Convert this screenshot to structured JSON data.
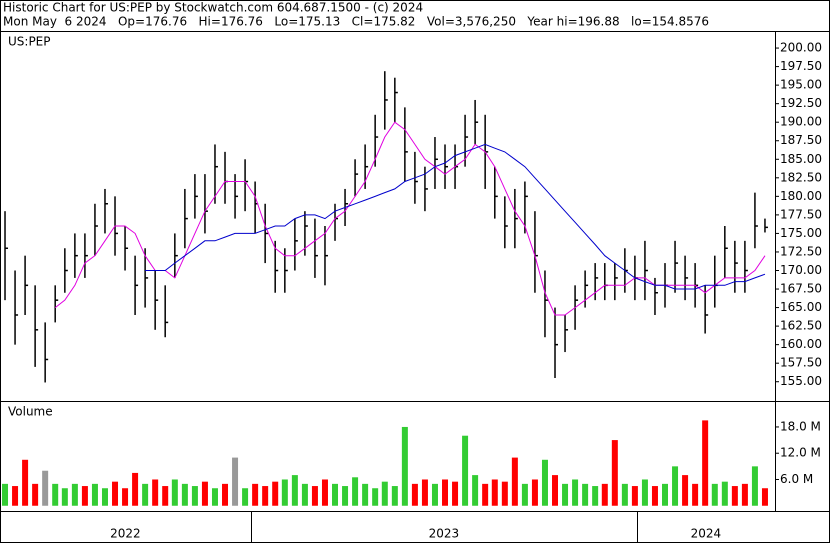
{
  "chart_data": {
    "type": "ohlc",
    "title": "Historic Chart for US:PEP by Stockwatch.com 604.687.1500 - (c) 2024",
    "subtitle": "Mon May  6 2024   Op=176.76   Hi=176.76   Lo=175.13   Cl=175.82   Vol=3,576,250   Year hi=196.88   lo=154.8576",
    "symbol_label": "US:PEP",
    "xlim": [
      2022.35,
      2024.358
    ],
    "xticks": [
      2023,
      2024
    ],
    "year_labels": [
      "2022",
      "2023",
      "2024"
    ],
    "x": [
      2022.363,
      2022.389,
      2022.415,
      2022.441,
      2022.467,
      2022.493,
      2022.518,
      2022.544,
      2022.57,
      2022.596,
      2022.622,
      2022.648,
      2022.674,
      2022.7,
      2022.726,
      2022.752,
      2022.778,
      2022.803,
      2022.829,
      2022.855,
      2022.881,
      2022.907,
      2022.933,
      2022.959,
      2022.985,
      2023.011,
      2023.037,
      2023.063,
      2023.088,
      2023.114,
      2023.14,
      2023.166,
      2023.192,
      2023.218,
      2023.244,
      2023.27,
      2023.296,
      2023.322,
      2023.347,
      2023.373,
      2023.399,
      2023.425,
      2023.451,
      2023.477,
      2023.503,
      2023.529,
      2023.555,
      2023.581,
      2023.607,
      2023.632,
      2023.658,
      2023.684,
      2023.71,
      2023.736,
      2023.762,
      2023.788,
      2023.814,
      2023.84,
      2023.866,
      2023.892,
      2023.917,
      2023.943,
      2023.969,
      2023.995,
      2024.021,
      2024.047,
      2024.073,
      2024.099,
      2024.125,
      2024.151,
      2024.177,
      2024.202,
      2024.228,
      2024.254,
      2024.28,
      2024.306,
      2024.332
    ],
    "high": [
      178,
      170,
      172,
      168,
      163,
      168,
      173,
      175,
      175,
      179,
      181,
      180,
      176,
      172,
      173,
      170,
      168,
      175,
      181,
      183,
      183,
      187,
      186,
      183,
      185,
      182,
      179,
      174,
      173,
      177,
      178,
      177,
      176,
      179,
      181,
      185,
      187,
      191,
      196.88,
      196,
      192,
      186,
      184,
      188,
      187,
      187,
      191,
      193,
      191,
      184,
      180,
      181,
      182,
      178,
      170,
      165,
      164,
      168,
      170,
      171,
      171,
      171,
      173,
      172,
      174,
      169,
      171,
      174,
      172,
      171,
      168,
      172,
      176,
      174,
      174,
      180.5,
      177
    ],
    "low": [
      166,
      160,
      164,
      157,
      154.9,
      163,
      167,
      169,
      169,
      172,
      175,
      172,
      170,
      164,
      165,
      162,
      161,
      169,
      173,
      177,
      175,
      179,
      179,
      177,
      178,
      175,
      171,
      167,
      167,
      170,
      172,
      169,
      168,
      174,
      176,
      180,
      181,
      184,
      189,
      190,
      182,
      179,
      178,
      181,
      181,
      181,
      184,
      187,
      181,
      177,
      173,
      173,
      175,
      167,
      161,
      155.5,
      159,
      162,
      165,
      166,
      166,
      166,
      167,
      166,
      166,
      164,
      165,
      167,
      166,
      165,
      161.5,
      165,
      169,
      167,
      167,
      173,
      175.13
    ],
    "close": [
      173,
      164,
      168,
      162,
      158,
      166,
      170,
      172,
      172,
      176,
      179,
      175,
      173,
      168,
      169,
      166,
      163,
      172,
      177,
      180,
      178,
      184,
      182,
      180,
      182,
      179,
      175,
      170,
      170,
      174,
      176,
      172,
      172,
      177,
      179,
      183,
      184,
      188,
      193,
      194,
      186,
      182,
      181,
      185,
      184,
      184,
      188,
      190,
      186,
      180,
      176,
      177,
      180,
      172,
      166,
      160,
      162,
      166,
      168,
      169,
      168,
      169,
      170,
      169,
      170,
      167,
      168,
      171,
      169,
      168,
      164,
      168,
      173,
      171,
      170,
      176,
      175.82
    ],
    "bar_color": "#000000",
    "series": [
      {
        "color": "#e000e0",
        "values": [
          null,
          null,
          null,
          null,
          null,
          165,
          166,
          168,
          171,
          172,
          174,
          176,
          176,
          175,
          172,
          170,
          170,
          169,
          172,
          175,
          178,
          180,
          182,
          182,
          182,
          180,
          176,
          173,
          172,
          172,
          173,
          174,
          175,
          177,
          178,
          180,
          182,
          185,
          188,
          190,
          189,
          187,
          185,
          184,
          183,
          184,
          185,
          187,
          186,
          184,
          181,
          178,
          176,
          172,
          167,
          164,
          164,
          165,
          166,
          167,
          168,
          168,
          168,
          169,
          169,
          168,
          168,
          168,
          168,
          168,
          167,
          168,
          169,
          169,
          169,
          170,
          172
        ]
      },
      {
        "color": "#0000cc",
        "values": [
          null,
          null,
          null,
          null,
          null,
          null,
          null,
          null,
          null,
          null,
          null,
          null,
          null,
          null,
          170,
          170,
          170,
          171,
          172,
          173,
          174,
          174,
          174.5,
          175,
          175,
          175,
          175.5,
          176,
          176,
          177,
          177.5,
          177.5,
          177,
          178,
          178.5,
          179,
          179.5,
          180,
          180.5,
          181,
          182,
          182.5,
          183,
          184,
          184.5,
          185.5,
          186,
          186.5,
          187,
          186.5,
          186,
          185,
          184,
          182.5,
          181,
          179.5,
          178,
          176.5,
          175,
          173.5,
          172,
          171,
          170,
          169,
          168.5,
          168,
          168,
          167.5,
          167.5,
          167.5,
          168,
          168,
          168,
          168.5,
          168.5,
          169,
          169.5
        ]
      }
    ],
    "ylim": [
      152.4,
      202.3
    ],
    "yticks": [
      {
        "value": 155,
        "label": "155.00"
      },
      {
        "value": 157.5,
        "label": "157.50"
      },
      {
        "value": 160,
        "label": "160.00"
      },
      {
        "value": 162.5,
        "label": "162.50"
      },
      {
        "value": 165,
        "label": "165.00"
      },
      {
        "value": 167.5,
        "label": "167.50"
      },
      {
        "value": 170,
        "label": "170.00"
      },
      {
        "value": 172.5,
        "label": "172.50"
      },
      {
        "value": 175,
        "label": "175.00"
      },
      {
        "value": 177.5,
        "label": "177.50"
      },
      {
        "value": 180,
        "label": "180.00"
      },
      {
        "value": 182.5,
        "label": "182.50"
      },
      {
        "value": 185,
        "label": "185.00"
      },
      {
        "value": 187.5,
        "label": "187.50"
      },
      {
        "value": 190,
        "label": "190.00"
      },
      {
        "value": 192.5,
        "label": "192.50"
      },
      {
        "value": 195,
        "label": "195.00"
      },
      {
        "value": 197.5,
        "label": "197.50"
      },
      {
        "value": 200,
        "label": "200.00"
      }
    ],
    "volume": {
      "title": "Volume",
      "ylim": [
        -1.2,
        23.7
      ],
      "yticks": [
        {
          "value": 6,
          "label": "6.0 M"
        },
        {
          "value": 12,
          "label": "12.0 M"
        },
        {
          "value": 18,
          "label": "18.0 M"
        }
      ],
      "values": [
        5,
        4.5,
        10.5,
        5,
        8,
        5,
        4,
        5,
        4.5,
        5,
        4,
        5.5,
        4,
        7.5,
        5,
        6,
        4.5,
        6,
        5,
        4.5,
        5.5,
        4,
        5,
        11,
        4,
        5,
        4.5,
        5.5,
        6,
        7,
        5,
        4.5,
        6,
        5,
        4.5,
        6.5,
        5,
        4,
        5.5,
        4.5,
        18,
        5,
        6,
        5,
        6,
        5.5,
        16,
        7,
        5,
        6,
        5.5,
        11,
        5,
        6,
        10.5,
        7,
        5,
        6,
        5,
        4.5,
        5,
        15,
        5,
        4.5,
        6,
        4.5,
        5,
        9,
        7,
        5,
        19.5,
        5,
        5.5,
        4.5,
        5,
        9,
        4
      ],
      "colors": [
        "#33cc33",
        "#ff0000",
        "#ff0000",
        "#ff0000",
        "#999999",
        "#33cc33",
        "#33cc33",
        "#33cc33",
        "#ff0000",
        "#33cc33",
        "#33cc33",
        "#ff0000",
        "#ff0000",
        "#ff0000",
        "#33cc33",
        "#ff0000",
        "#ff0000",
        "#33cc33",
        "#33cc33",
        "#33cc33",
        "#ff0000",
        "#33cc33",
        "#ff0000",
        "#999999",
        "#33cc33",
        "#ff0000",
        "#ff0000",
        "#ff0000",
        "#33cc33",
        "#33cc33",
        "#33cc33",
        "#ff0000",
        "#ff0000",
        "#33cc33",
        "#33cc33",
        "#33cc33",
        "#33cc33",
        "#33cc33",
        "#33cc33",
        "#33cc33",
        "#33cc33",
        "#ff0000",
        "#ff0000",
        "#33cc33",
        "#ff0000",
        "#ff0000",
        "#33cc33",
        "#33cc33",
        "#ff0000",
        "#ff0000",
        "#ff0000",
        "#ff0000",
        "#33cc33",
        "#ff0000",
        "#33cc33",
        "#ff0000",
        "#33cc33",
        "#33cc33",
        "#33cc33",
        "#33cc33",
        "#ff0000",
        "#ff0000",
        "#33cc33",
        "#ff0000",
        "#33cc33",
        "#ff0000",
        "#33cc33",
        "#33cc33",
        "#ff0000",
        "#ff0000",
        "#ff0000",
        "#33cc33",
        "#33cc33",
        "#ff0000",
        "#ff0000",
        "#33cc33",
        "#ff0000"
      ]
    }
  }
}
